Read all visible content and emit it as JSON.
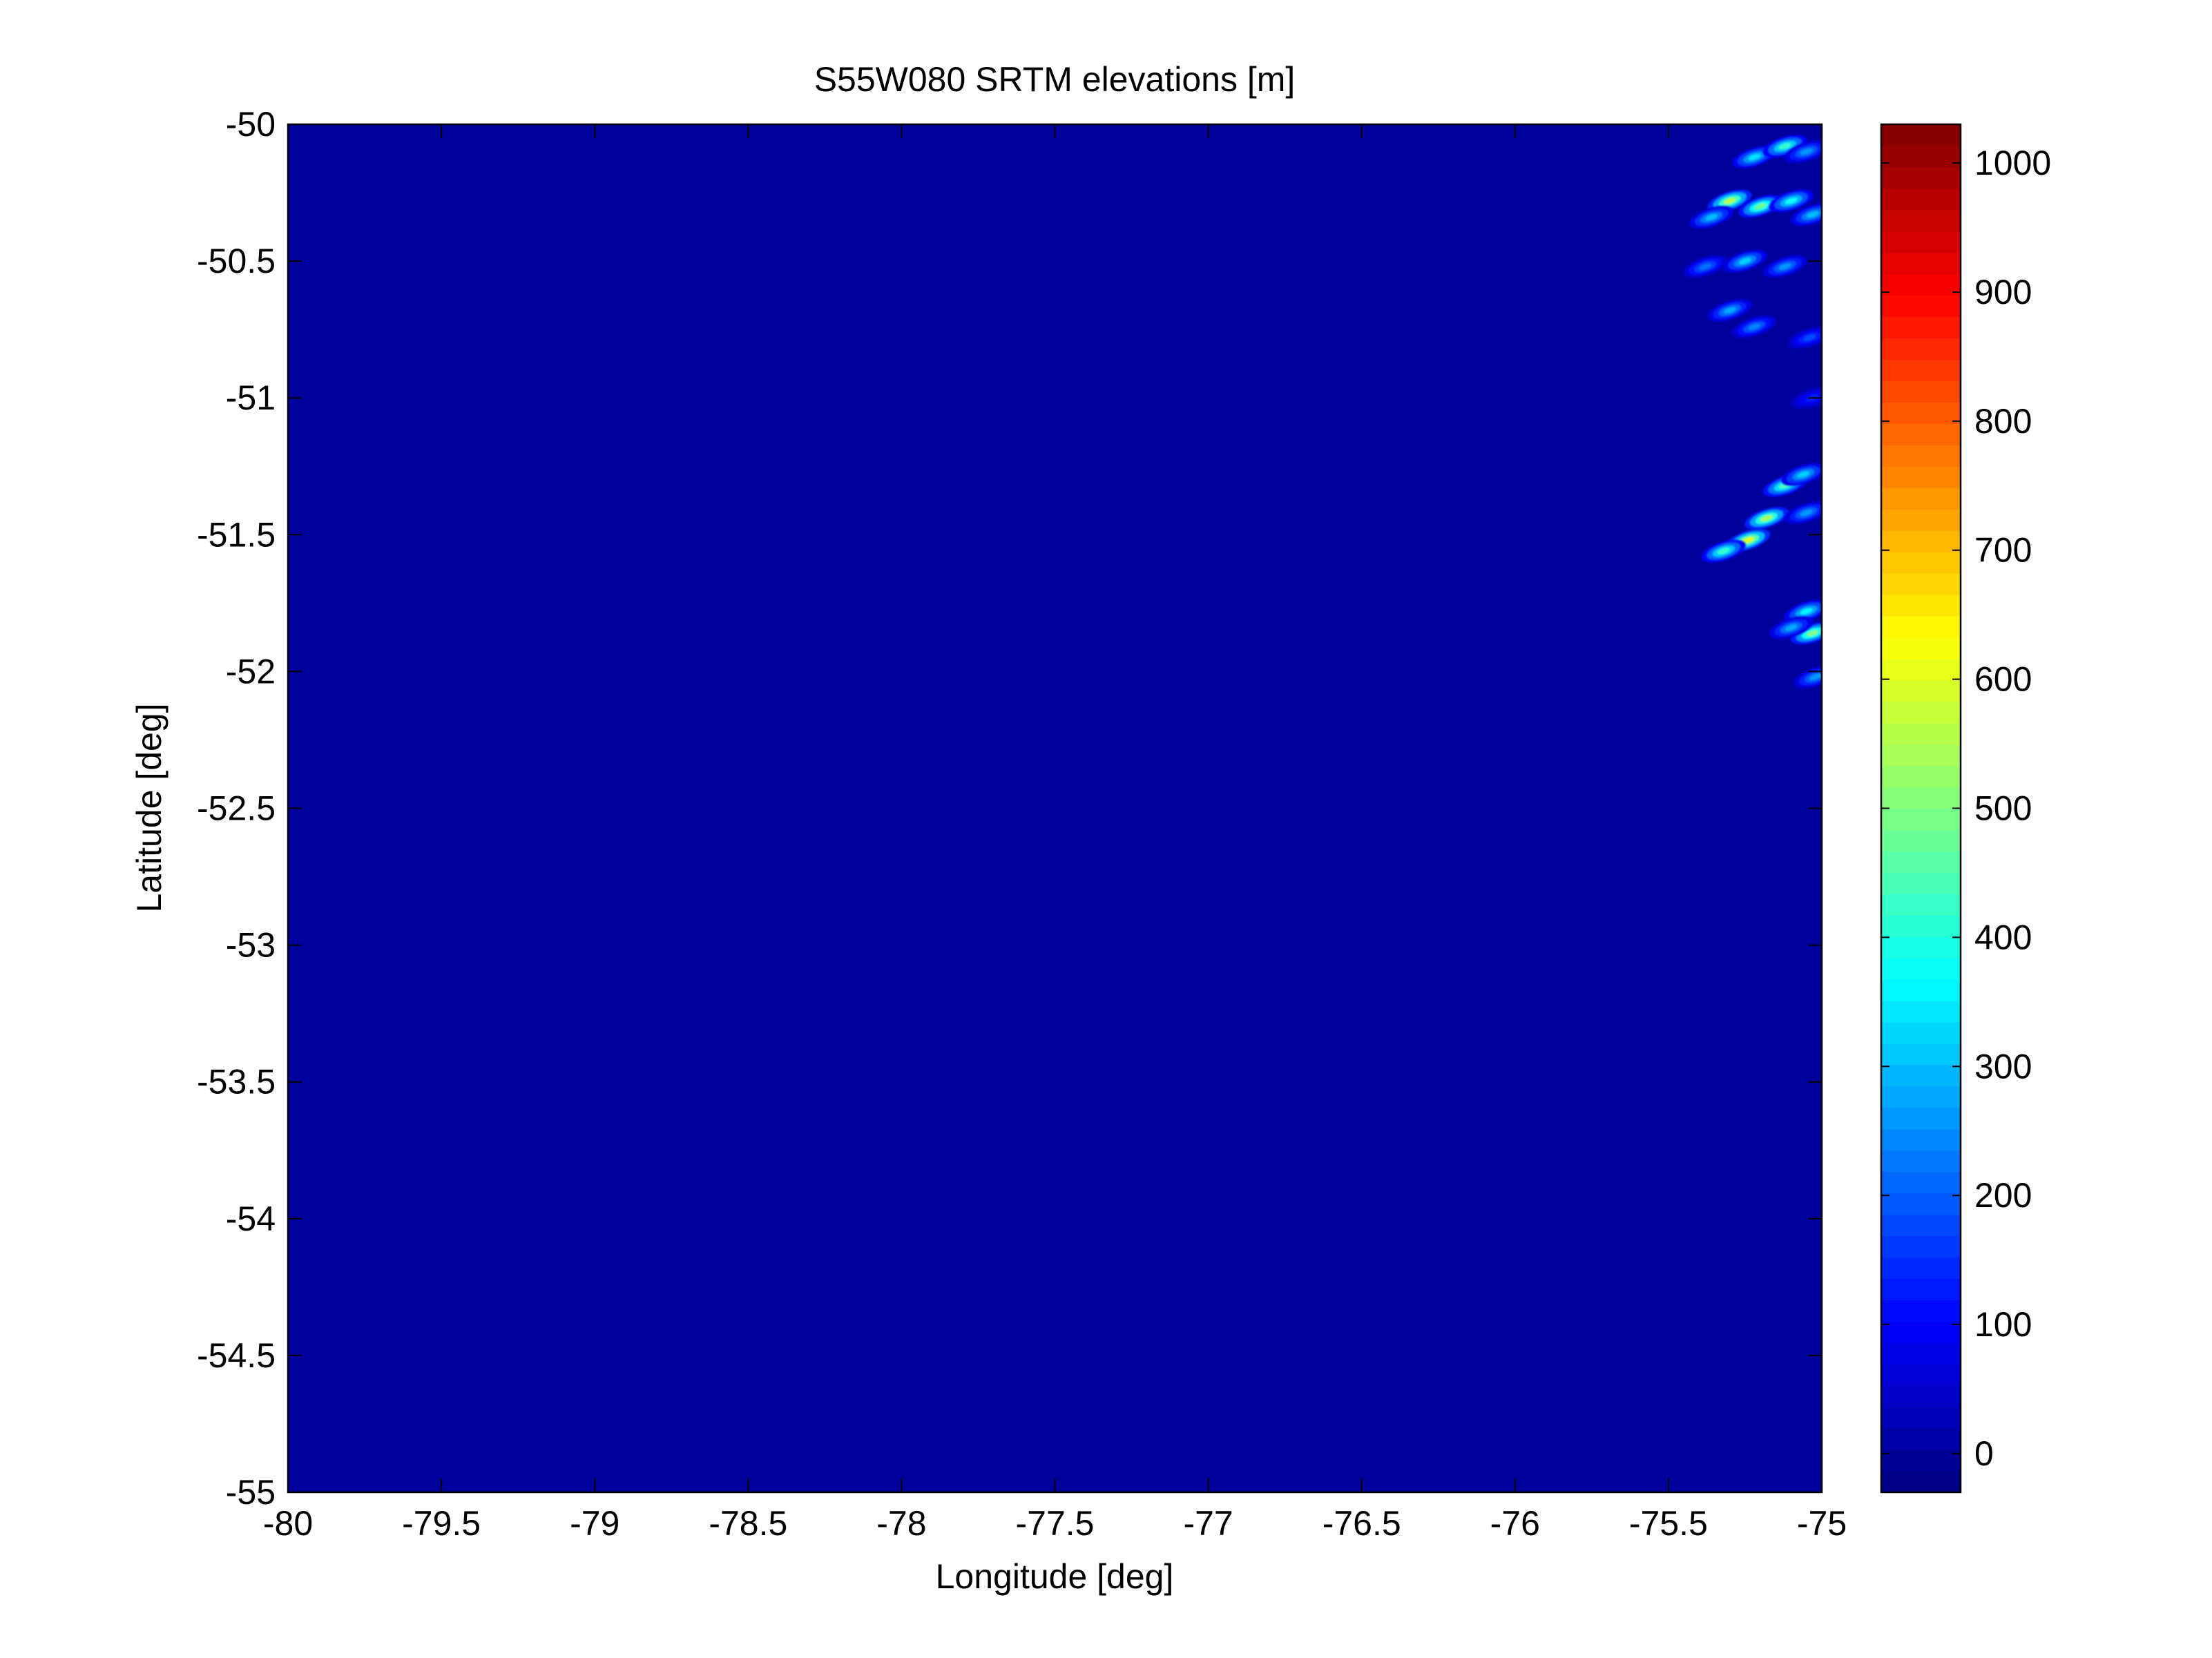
{
  "chart_data": {
    "type": "heatmap",
    "title": "S55W080 SRTM elevations [m]",
    "xlabel": "Longitude [deg]",
    "ylabel": "Latitude [deg]",
    "xlim": [
      -80,
      -75
    ],
    "ylim": [
      -55,
      -50
    ],
    "x_ticks": [
      -80,
      -79.5,
      -79,
      -78.5,
      -78,
      -77.5,
      -77,
      -76.5,
      -76,
      -75.5,
      -75
    ],
    "x_tick_labels": [
      "-80",
      "-79.5",
      "-79",
      "-78.5",
      "-78",
      "-77.5",
      "-77",
      "-76.5",
      "-76",
      "-75.5",
      "-75"
    ],
    "y_ticks": [
      -50,
      -50.5,
      -51,
      -51.5,
      -52,
      -52.5,
      -53,
      -53.5,
      -54,
      -54.5,
      -55
    ],
    "y_tick_labels": [
      "-50",
      "-50.5",
      "-51",
      "-51.5",
      "-52",
      "-52.5",
      "-53",
      "-53.5",
      "-54",
      "-54.5",
      "-55"
    ],
    "grid": false,
    "colormap": "jet",
    "background_value": 0,
    "colorbar": {
      "clim": [
        -30,
        1030
      ],
      "ticks": [
        0,
        100,
        200,
        300,
        400,
        500,
        600,
        700,
        800,
        900,
        1000
      ],
      "tick_labels": [
        "0",
        "100",
        "200",
        "300",
        "400",
        "500",
        "600",
        "700",
        "800",
        "900",
        "1000"
      ],
      "levels": 64
    },
    "terrain_features": [
      {
        "lon": -75.22,
        "lat": -50.12,
        "elevation": 340
      },
      {
        "lon": -75.12,
        "lat": -50.08,
        "elevation": 420
      },
      {
        "lon": -75.05,
        "lat": -50.1,
        "elevation": 260
      },
      {
        "lon": -75.3,
        "lat": -50.28,
        "elevation": 560
      },
      {
        "lon": -75.2,
        "lat": -50.3,
        "elevation": 480
      },
      {
        "lon": -75.1,
        "lat": -50.28,
        "elevation": 380
      },
      {
        "lon": -75.03,
        "lat": -50.33,
        "elevation": 300
      },
      {
        "lon": -75.36,
        "lat": -50.34,
        "elevation": 300
      },
      {
        "lon": -75.25,
        "lat": -50.5,
        "elevation": 320
      },
      {
        "lon": -75.12,
        "lat": -50.52,
        "elevation": 260
      },
      {
        "lon": -75.38,
        "lat": -50.52,
        "elevation": 220
      },
      {
        "lon": -75.3,
        "lat": -50.68,
        "elevation": 280
      },
      {
        "lon": -75.22,
        "lat": -50.74,
        "elevation": 240
      },
      {
        "lon": -75.04,
        "lat": -50.78,
        "elevation": 180
      },
      {
        "lon": -75.03,
        "lat": -51.0,
        "elevation": 140
      },
      {
        "lon": -75.12,
        "lat": -51.32,
        "elevation": 440
      },
      {
        "lon": -75.06,
        "lat": -51.28,
        "elevation": 320
      },
      {
        "lon": -75.18,
        "lat": -51.44,
        "elevation": 540
      },
      {
        "lon": -75.24,
        "lat": -51.52,
        "elevation": 600
      },
      {
        "lon": -75.32,
        "lat": -51.56,
        "elevation": 420
      },
      {
        "lon": -75.05,
        "lat": -51.42,
        "elevation": 260
      },
      {
        "lon": -75.05,
        "lat": -51.78,
        "elevation": 360
      },
      {
        "lon": -75.03,
        "lat": -51.86,
        "elevation": 500
      },
      {
        "lon": -75.1,
        "lat": -51.84,
        "elevation": 280
      },
      {
        "lon": -75.02,
        "lat": -52.02,
        "elevation": 260
      }
    ]
  }
}
